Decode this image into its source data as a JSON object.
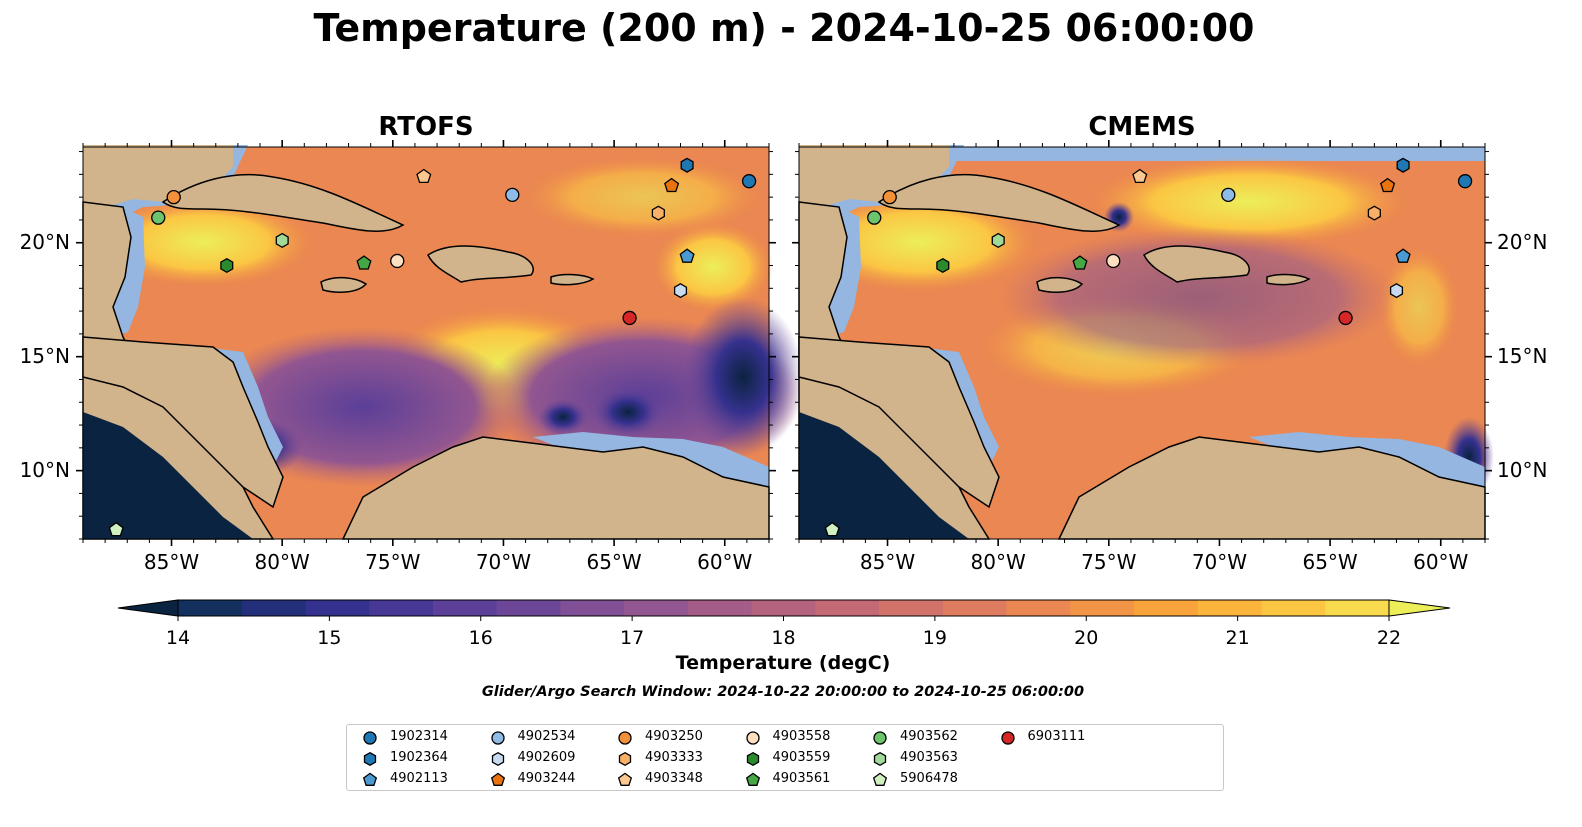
{
  "title": "Temperature (200 m) - 2024-10-25 06:00:00",
  "panels": [
    {
      "title": "RTOFS"
    },
    {
      "title": "CMEMS"
    }
  ],
  "axes": {
    "lon_ticks": [
      "85°W",
      "80°W",
      "75°W",
      "70°W",
      "65°W",
      "60°W"
    ],
    "lat_ticks": [
      "20°N",
      "15°N",
      "10°N"
    ]
  },
  "colorbar": {
    "label": "Temperature (degC)",
    "ticks": [
      "14",
      "15",
      "16",
      "17",
      "18",
      "19",
      "20",
      "21",
      "22"
    ],
    "range": [
      14,
      22
    ],
    "extend": "both",
    "colors": [
      "#0a2340",
      "#13305e",
      "#232f7a",
      "#35318e",
      "#483896",
      "#5b3f98",
      "#6d4797",
      "#804f95",
      "#925690",
      "#a35d88",
      "#b3637e",
      "#c36a75",
      "#d2736b",
      "#de7c5f",
      "#ea8752",
      "#f29445",
      "#f8a33c",
      "#fbb43c",
      "#fbc643",
      "#f7da4d",
      "#ecee5a"
    ]
  },
  "search_window": "Glider/Argo Search Window: 2024-10-22 20:00:00 to 2024-10-25 06:00:00",
  "legend": [
    {
      "id": "1902314",
      "marker": "circle",
      "color": "#1f77b4"
    },
    {
      "id": "1902364",
      "marker": "hexagon",
      "color": "#1f77b4"
    },
    {
      "id": "4902113",
      "marker": "pentagon",
      "color": "#4b9ad2"
    },
    {
      "id": "4902534",
      "marker": "circle",
      "color": "#8fbce6"
    },
    {
      "id": "4902609",
      "marker": "hexagon",
      "color": "#c6dbef"
    },
    {
      "id": "4903244",
      "marker": "pentagon",
      "color": "#e8730f"
    },
    {
      "id": "4903250",
      "marker": "circle",
      "color": "#f2913a"
    },
    {
      "id": "4903333",
      "marker": "hexagon",
      "color": "#fbb068"
    },
    {
      "id": "4903348",
      "marker": "pentagon",
      "color": "#fdc890"
    },
    {
      "id": "4903558",
      "marker": "circle",
      "color": "#fde0c0"
    },
    {
      "id": "4903559",
      "marker": "hexagon",
      "color": "#2b8a2b"
    },
    {
      "id": "4903561",
      "marker": "pentagon",
      "color": "#45a845"
    },
    {
      "id": "4903562",
      "marker": "circle",
      "color": "#6cc46c"
    },
    {
      "id": "4903563",
      "marker": "hexagon",
      "color": "#a1d99b"
    },
    {
      "id": "5906478",
      "marker": "pentagon",
      "color": "#d0f0c0"
    },
    {
      "id": "6903111",
      "marker": "circle",
      "color": "#d62728"
    }
  ],
  "floats": [
    {
      "id": "1902314",
      "lon": -58.9,
      "lat": 22.7
    },
    {
      "id": "1902364",
      "lon": -61.7,
      "lat": 23.4
    },
    {
      "id": "4902113",
      "lon": -61.7,
      "lat": 19.4
    },
    {
      "id": "4902534",
      "lon": -69.6,
      "lat": 22.1
    },
    {
      "id": "4902609",
      "lon": -62.0,
      "lat": 17.9
    },
    {
      "id": "4903244",
      "lon": -62.4,
      "lat": 22.5
    },
    {
      "id": "4903250",
      "lon": -84.9,
      "lat": 22.0
    },
    {
      "id": "4903333",
      "lon": -63.0,
      "lat": 21.3
    },
    {
      "id": "4903348",
      "lon": -73.6,
      "lat": 22.9
    },
    {
      "id": "4903558",
      "lon": -74.8,
      "lat": 19.2
    },
    {
      "id": "4903559",
      "lon": -82.5,
      "lat": 19.0
    },
    {
      "id": "4903561",
      "lon": -76.3,
      "lat": 19.1
    },
    {
      "id": "4903562",
      "lon": -85.6,
      "lat": 21.1
    },
    {
      "id": "4903563",
      "lon": -80.0,
      "lat": 20.1
    },
    {
      "id": "5906478",
      "lon": -87.5,
      "lat": 7.4
    },
    {
      "id": "6903111",
      "lon": -64.3,
      "lat": 16.7
    }
  ]
}
